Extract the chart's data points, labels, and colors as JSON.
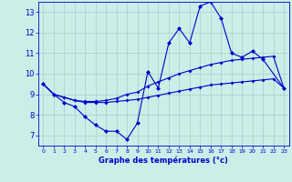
{
  "title": "Graphe des températures (°c)",
  "background_color": "#cceee8",
  "grid_color": "#aacccc",
  "line_color": "#0000cc",
  "hours": [
    0,
    1,
    2,
    3,
    4,
    5,
    6,
    7,
    8,
    9,
    10,
    11,
    12,
    13,
    14,
    15,
    16,
    17,
    18,
    19,
    20,
    21,
    22,
    23
  ],
  "temp_main": [
    9.5,
    9.0,
    8.6,
    8.4,
    7.9,
    7.5,
    7.2,
    7.2,
    6.8,
    7.6,
    10.1,
    9.3,
    11.5,
    12.2,
    11.5,
    13.3,
    13.5,
    12.7,
    11.0,
    10.8,
    11.1,
    10.7,
    null,
    9.3
  ],
  "temp_line2": [
    9.5,
    9.0,
    8.85,
    8.7,
    8.6,
    8.6,
    8.6,
    8.65,
    8.7,
    8.75,
    8.85,
    8.95,
    9.05,
    9.15,
    9.25,
    9.35,
    9.45,
    9.5,
    9.55,
    9.6,
    9.65,
    9.7,
    9.75,
    9.3
  ],
  "temp_line3": [
    9.5,
    9.0,
    8.85,
    8.7,
    8.65,
    8.65,
    8.7,
    8.8,
    9.0,
    9.1,
    9.4,
    9.6,
    9.8,
    10.0,
    10.15,
    10.3,
    10.45,
    10.55,
    10.65,
    10.7,
    10.75,
    10.8,
    10.85,
    9.3
  ],
  "ylim": [
    6.5,
    13.5
  ],
  "yticks": [
    7,
    8,
    9,
    10,
    11,
    12,
    13
  ],
  "xlim": [
    -0.5,
    23.5
  ],
  "xticks": [
    0,
    1,
    2,
    3,
    4,
    5,
    6,
    7,
    8,
    9,
    10,
    11,
    12,
    13,
    14,
    15,
    16,
    17,
    18,
    19,
    20,
    21,
    22,
    23
  ],
  "xlabel_fontsize": 6.0,
  "ytick_fontsize": 6.0,
  "xtick_fontsize": 4.5,
  "linewidth": 0.8,
  "markersize_main": 2.5,
  "markersize_ref": 2.0
}
